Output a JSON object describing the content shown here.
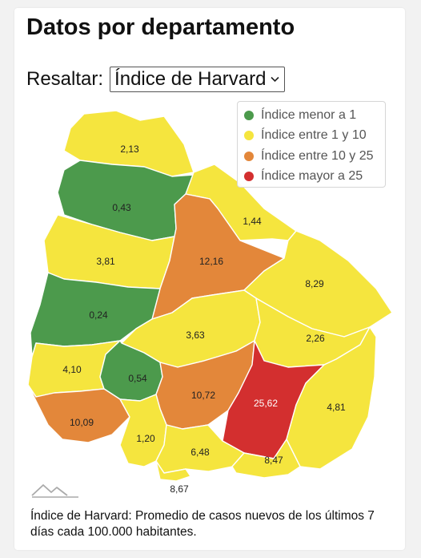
{
  "title": "Datos por departamento",
  "highlight": {
    "label": "Resaltar:",
    "selected": "Índice de Harvard"
  },
  "legend": [
    {
      "label": "Índice menor a 1",
      "color": "#4c9a4c"
    },
    {
      "label": "Índice entre 1 y 10",
      "color": "#f5e53e"
    },
    {
      "label": "Índice entre 10 y 25",
      "color": "#e3873a"
    },
    {
      "label": "Índice mayor a 25",
      "color": "#d32f2f"
    }
  ],
  "departments": [
    {
      "value": "2,13",
      "category": "yellow"
    },
    {
      "value": "0,43",
      "category": "green"
    },
    {
      "value": "1,44",
      "category": "yellow"
    },
    {
      "value": "3,81",
      "category": "yellow"
    },
    {
      "value": "12,16",
      "category": "orange"
    },
    {
      "value": "8,29",
      "category": "yellow"
    },
    {
      "value": "0,24",
      "category": "green"
    },
    {
      "value": "3,63",
      "category": "yellow"
    },
    {
      "value": "2,26",
      "category": "yellow"
    },
    {
      "value": "4,10",
      "category": "yellow"
    },
    {
      "value": "0,54",
      "category": "green"
    },
    {
      "value": "10,72",
      "category": "orange"
    },
    {
      "value": "25,62",
      "category": "red"
    },
    {
      "value": "4,81",
      "category": "yellow"
    },
    {
      "value": "10,09",
      "category": "orange"
    },
    {
      "value": "1,20",
      "category": "yellow"
    },
    {
      "value": "6,48",
      "category": "yellow"
    },
    {
      "value": "8,47",
      "category": "yellow"
    },
    {
      "value": "8,67",
      "category": "yellow"
    }
  ],
  "colors": {
    "green": "#4c9a4c",
    "yellow": "#f5e53e",
    "orange": "#e3873a",
    "red": "#d32f2f",
    "border": "#ffffff"
  },
  "footnote": "Índice de Harvard: Promedio de casos nuevos de los últimos 7 días cada 100.000 habitantes.",
  "icons": {
    "select": "chevron-down-icon",
    "watermark": "mountain-logo-icon"
  }
}
